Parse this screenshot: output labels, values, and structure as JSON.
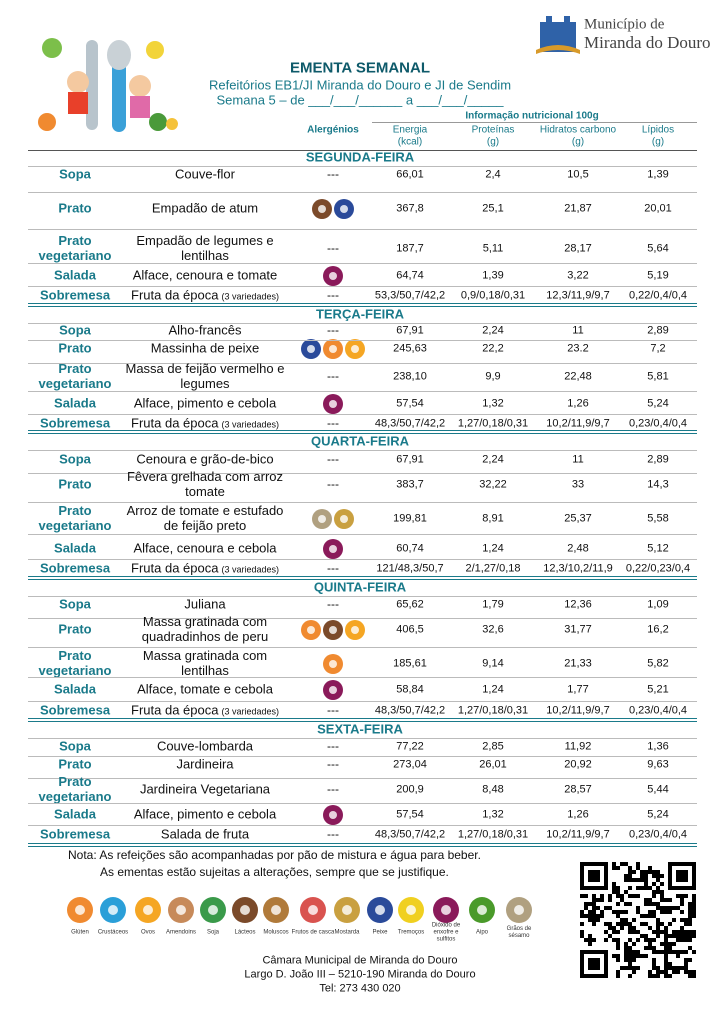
{
  "header": {
    "logo": [
      "Município de",
      "Miranda do Douro"
    ],
    "title": "EMENTA SEMANAL",
    "subtitle": "Refeitórios EB1/JI Miranda do Douro e JI de Sendim",
    "week": "Semana 5 – de ___/___/______ a ___/___/_____"
  },
  "table": {
    "allergens_heading": "Alergénios",
    "nutrition_heading": "Informação nutricional 100g",
    "columns": [
      {
        "name": "Energia",
        "unit": "(kcal)"
      },
      {
        "name": "Proteínas",
        "unit": "(g)"
      },
      {
        "name": "Hidratos carbono",
        "unit": "(g)"
      },
      {
        "name": "Lípidos",
        "unit": "(g)"
      }
    ],
    "days": [
      {
        "name": "SEGUNDA-FEIRA",
        "rows": [
          {
            "course": "Sopa",
            "dish": "Couve-flor",
            "allergens": "---",
            "values": [
              "66,01",
              "2,4",
              "10,5",
              "1,39"
            ]
          },
          {
            "course": "Prato",
            "dish": "Empadão de atum",
            "values": [
              "367,8",
              "25,1",
              "21,87",
              "20,01"
            ]
          },
          {
            "course": "Prato vegetariano",
            "dish": "Empadão de legumes e lentilhas",
            "allergens": "---",
            "values": [
              "187,7",
              "5,11",
              "28,17",
              "5,64"
            ]
          },
          {
            "course": "Salada",
            "dish": "Alface, cenoura e tomate",
            "values": [
              "64,74",
              "1,39",
              "3,22",
              "5,19"
            ]
          },
          {
            "course": "Sobremesa",
            "dish": "Fruta da época",
            "note": "(3 variedades)",
            "allergens": "---",
            "values": [
              "53,3/50,7/42,2",
              "0,9/0,18/0,31",
              "12,3/11,9/9,7",
              "0,22/0,4/0,4"
            ]
          }
        ]
      },
      {
        "name": "TERÇA-FEIRA",
        "rows": [
          {
            "course": "Sopa",
            "dish": "Alho-francês",
            "allergens": "---",
            "values": [
              "67,91",
              "2,24",
              "11",
              "2,89"
            ]
          },
          {
            "course": "Prato",
            "dish": "Massinha de peixe",
            "values": [
              "245,63",
              "22,2",
              "23.2",
              "7,2"
            ]
          },
          {
            "course": "Prato vegetariano",
            "dish": "Massa de feijão vermelho e legumes",
            "allergens": "---",
            "values": [
              "238,10",
              "9,9",
              "22,48",
              "5,81"
            ]
          },
          {
            "course": "Salada",
            "dish": "Alface, pimento e cebola",
            "values": [
              "57,54",
              "1,32",
              "1,26",
              "5,24"
            ]
          },
          {
            "course": "Sobremesa",
            "dish": "Fruta da época",
            "note": "(3 variedades)",
            "allergens": "---",
            "values": [
              "48,3/50,7/42,2",
              "1,27/0,18/0,31",
              "10,2/11,9/9,7",
              "0,23/0,4/0,4"
            ]
          }
        ]
      },
      {
        "name": "QUARTA-FEIRA",
        "rows": [
          {
            "course": "Sopa",
            "dish": "Cenoura e grão-de-bico",
            "allergens": "---",
            "values": [
              "67,91",
              "2,24",
              "11",
              "2,89"
            ]
          },
          {
            "course": "Prato",
            "dish": "Fêvera grelhada com arroz tomate",
            "allergens": "---",
            "values": [
              "383,7",
              "32,22",
              "33",
              "14,3"
            ]
          },
          {
            "course": "Prato vegetariano",
            "dish": "Arroz de tomate e estufado de feijão preto",
            "values": [
              "199,81",
              "8,91",
              "25,37",
              "5,58"
            ]
          },
          {
            "course": "Salada",
            "dish": "Alface, cenoura e cebola",
            "values": [
              "60,74",
              "1,24",
              "2,48",
              "5,12"
            ]
          },
          {
            "course": "Sobremesa",
            "dish": "Fruta da época",
            "note": "(3 variedades)",
            "allergens": "---",
            "values": [
              "121/48,3/50,7",
              "2/1,27/0,18",
              "12,3/10,2/11,9",
              "0,22/0,23/0,4"
            ]
          }
        ]
      },
      {
        "name": "QUINTA-FEIRA",
        "rows": [
          {
            "course": "Sopa",
            "dish": "Juliana",
            "allergens": "---",
            "values": [
              "65,62",
              "1,79",
              "12,36",
              "1,09"
            ]
          },
          {
            "course": "Prato",
            "dish": "Massa gratinada com quadradinhos de peru",
            "values": [
              "406,5",
              "32,6",
              "31,77",
              "16,2"
            ]
          },
          {
            "course": "Prato vegetariano",
            "dish": "Massa gratinada com lentilhas",
            "values": [
              "185,61",
              "9,14",
              "21,33",
              "5,82"
            ]
          },
          {
            "course": "Salada",
            "dish": "Alface, tomate e cebola",
            "values": [
              "58,84",
              "1,24",
              "1,77",
              "5,21"
            ]
          },
          {
            "course": "Sobremesa",
            "dish": "Fruta da época",
            "note": "(3 variedades)",
            "allergens": "---",
            "values": [
              "48,3/50,7/42,2",
              "1,27/0,18/0,31",
              "10,2/11,9/9,7",
              "0,23/0,4/0,4"
            ]
          }
        ]
      },
      {
        "name": "SEXTA-FEIRA",
        "rows": [
          {
            "course": "Sopa",
            "dish": "Couve-lombarda",
            "allergens": "---",
            "values": [
              "77,22",
              "2,85",
              "11,92",
              "1,36"
            ]
          },
          {
            "course": "Prato",
            "dish": "Jardineira",
            "allergens": "---",
            "values": [
              "273,04",
              "26,01",
              "20,92",
              "9,63"
            ]
          },
          {
            "course": "Prato vegetariano",
            "dish": "Jardineira Vegetariana",
            "allergens": "---",
            "values": [
              "200,9",
              "8,48",
              "28,57",
              "5,44"
            ]
          },
          {
            "course": "Salada",
            "dish": "Alface, pimento e cebola",
            "values": [
              "57,54",
              "1,32",
              "1,26",
              "5,24"
            ]
          },
          {
            "course": "Sobremesa",
            "dish": "Salada de fruta",
            "allergens": "---",
            "values": [
              "48,3/50,7/42,2",
              "1,27/0,18/0,31",
              "10,2/11,9/9,7",
              "0,23/0,4/0,4"
            ]
          }
        ]
      }
    ]
  },
  "notes": [
    "Nota: As refeições são acompanhadas por pão de mistura e água para beber.",
    "As ementas estão sujeitas a alterações, sempre que se justifique."
  ],
  "legend": [
    "Glúten",
    "Crustáceos",
    "Ovos",
    "Amendoins",
    "Soja",
    "Lácteos",
    "Moluscos",
    "Frutos de casca",
    "Mostarda",
    "Peixe",
    "Tremoços",
    "Dióxido de enxofre e sulfitos",
    "Aipo",
    "Grãos de sésamo"
  ],
  "footer": [
    "Câmara Municipal de Miranda do Douro",
    "Largo D. João III – 5210-190 Miranda do Douro",
    "Tel: 273 430 020"
  ]
}
